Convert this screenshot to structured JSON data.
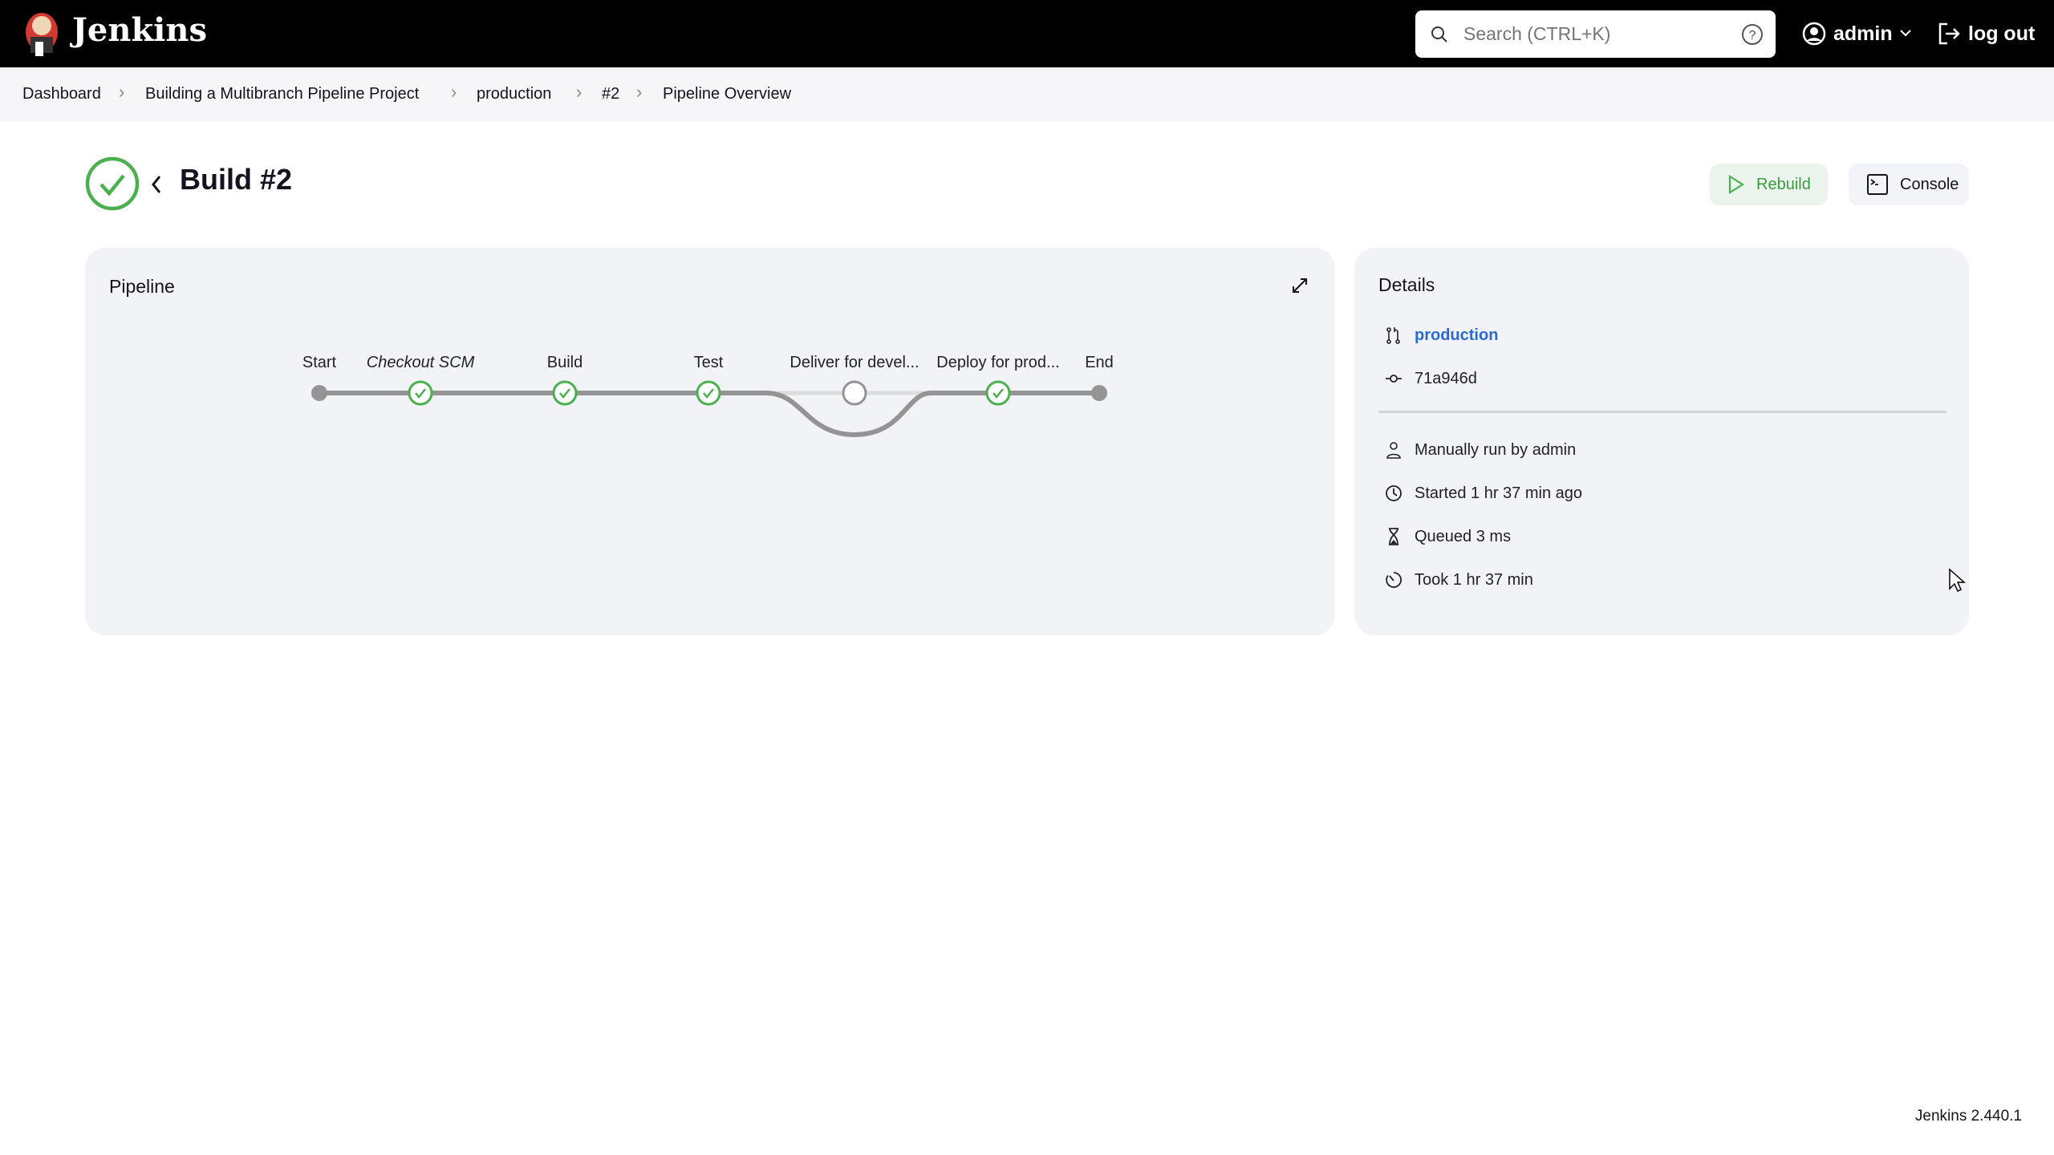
{
  "header": {
    "brand": "Jenkins",
    "search_placeholder": "Search (CTRL+K)",
    "user": "admin",
    "logout": "log out"
  },
  "breadcrumbs": [
    "Dashboard",
    "Building a Multibranch Pipeline Project",
    "production",
    "#2",
    "Pipeline Overview"
  ],
  "build": {
    "title": "Build #2",
    "status": "success",
    "rebuild": "Rebuild",
    "console": "Console"
  },
  "pipeline": {
    "title": "Pipeline",
    "stages": [
      {
        "name": "Start",
        "status": "start"
      },
      {
        "name": "Checkout SCM",
        "status": "success",
        "italic": true
      },
      {
        "name": "Build",
        "status": "success"
      },
      {
        "name": "Test",
        "status": "success"
      },
      {
        "name": "Deliver for devel...",
        "status": "skipped"
      },
      {
        "name": "Deploy for prod...",
        "status": "success"
      },
      {
        "name": "End",
        "status": "end"
      }
    ]
  },
  "details": {
    "title": "Details",
    "branch": "production",
    "commit": "71a946d",
    "trigger": "Manually run by admin",
    "started": "Started 1 hr 37 min ago",
    "queued": "Queued 3 ms",
    "took": "Took 1 hr 37 min"
  },
  "footer": {
    "version": "Jenkins 2.440.1"
  },
  "colors": {
    "success": "#4caf50",
    "link": "#2a6ad6",
    "header": "#000000",
    "card": "#f2f3f7"
  }
}
